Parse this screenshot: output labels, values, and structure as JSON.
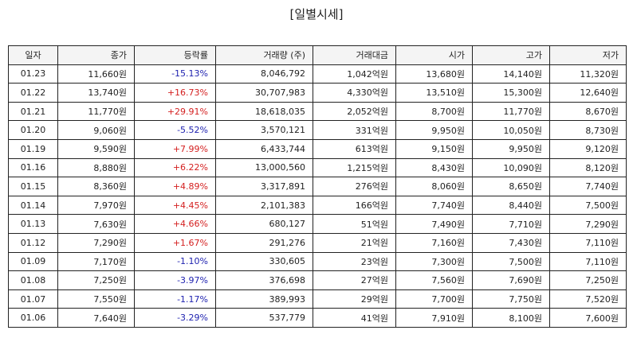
{
  "title": "[일별시세]",
  "columns": [
    "일자",
    "종가",
    "등락률",
    "거래량 (주)",
    "거래대금",
    "시가",
    "고가",
    "저가"
  ],
  "colors": {
    "up": "#d42020",
    "down": "#1f22b0",
    "text": "#222222",
    "header_bg": "#f4f4f4"
  },
  "rows": [
    {
      "date": "01.23",
      "close": "11,660원",
      "change": "-15.13%",
      "dir": "down",
      "volume": "8,046,792",
      "value": "1,042억원",
      "open": "13,680원",
      "high": "14,140원",
      "low": "11,320원"
    },
    {
      "date": "01.22",
      "close": "13,740원",
      "change": "+16.73%",
      "dir": "up",
      "volume": "30,707,983",
      "value": "4,330억원",
      "open": "13,510원",
      "high": "15,300원",
      "low": "12,640원"
    },
    {
      "date": "01.21",
      "close": "11,770원",
      "change": "+29.91%",
      "dir": "up",
      "volume": "18,618,035",
      "value": "2,052억원",
      "open": "8,700원",
      "high": "11,770원",
      "low": "8,670원"
    },
    {
      "date": "01.20",
      "close": "9,060원",
      "change": "-5.52%",
      "dir": "down",
      "volume": "3,570,121",
      "value": "331억원",
      "open": "9,950원",
      "high": "10,050원",
      "low": "8,730원"
    },
    {
      "date": "01.19",
      "close": "9,590원",
      "change": "+7.99%",
      "dir": "up",
      "volume": "6,433,744",
      "value": "613억원",
      "open": "9,150원",
      "high": "9,950원",
      "low": "9,120원"
    },
    {
      "date": "01.16",
      "close": "8,880원",
      "change": "+6.22%",
      "dir": "up",
      "volume": "13,000,560",
      "value": "1,215억원",
      "open": "8,430원",
      "high": "10,090원",
      "low": "8,120원"
    },
    {
      "date": "01.15",
      "close": "8,360원",
      "change": "+4.89%",
      "dir": "up",
      "volume": "3,317,891",
      "value": "276억원",
      "open": "8,060원",
      "high": "8,650원",
      "low": "7,740원"
    },
    {
      "date": "01.14",
      "close": "7,970원",
      "change": "+4.45%",
      "dir": "up",
      "volume": "2,101,383",
      "value": "166억원",
      "open": "7,740원",
      "high": "8,440원",
      "low": "7,500원"
    },
    {
      "date": "01.13",
      "close": "7,630원",
      "change": "+4.66%",
      "dir": "up",
      "volume": "680,127",
      "value": "51억원",
      "open": "7,490원",
      "high": "7,710원",
      "low": "7,290원"
    },
    {
      "date": "01.12",
      "close": "7,290원",
      "change": "+1.67%",
      "dir": "up",
      "volume": "291,276",
      "value": "21억원",
      "open": "7,160원",
      "high": "7,430원",
      "low": "7,110원"
    },
    {
      "date": "01.09",
      "close": "7,170원",
      "change": "-1.10%",
      "dir": "down",
      "volume": "330,605",
      "value": "23억원",
      "open": "7,300원",
      "high": "7,500원",
      "low": "7,110원"
    },
    {
      "date": "01.08",
      "close": "7,250원",
      "change": "-3.97%",
      "dir": "down",
      "volume": "376,698",
      "value": "27억원",
      "open": "7,560원",
      "high": "7,690원",
      "low": "7,250원"
    },
    {
      "date": "01.07",
      "close": "7,550원",
      "change": "-1.17%",
      "dir": "down",
      "volume": "389,993",
      "value": "29억원",
      "open": "7,700원",
      "high": "7,750원",
      "low": "7,520원"
    },
    {
      "date": "01.06",
      "close": "7,640원",
      "change": "-3.29%",
      "dir": "down",
      "volume": "537,779",
      "value": "41억원",
      "open": "7,910원",
      "high": "8,100원",
      "low": "7,600원"
    }
  ]
}
